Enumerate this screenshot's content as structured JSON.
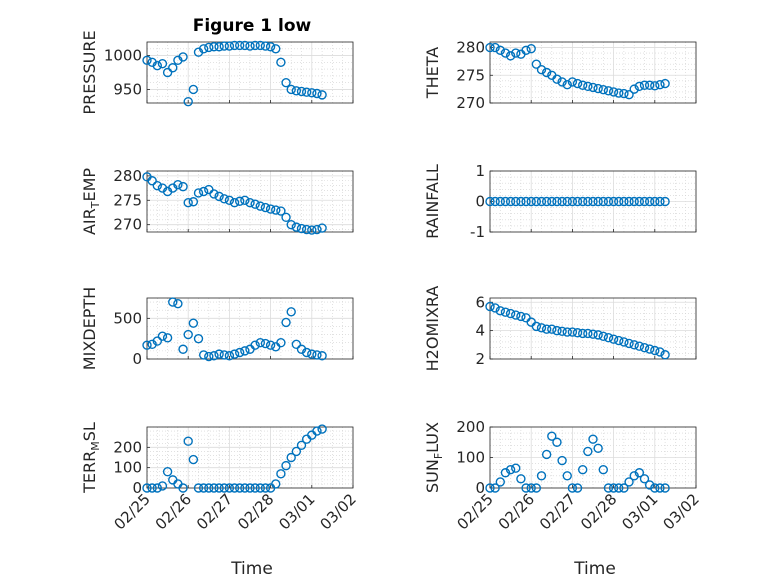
{
  "figure": {
    "title": "Figure 1 low",
    "xlabel": "Time",
    "date_ticks": [
      "02/25",
      "02/26",
      "02/27",
      "02/28",
      "03/01",
      "03/02"
    ],
    "marker_color": "#0072BD"
  },
  "chart_data": [
    {
      "type": "scatter",
      "ylabel": "PRESSURE",
      "ylabel_parts": {
        "main": "PRESSURE"
      },
      "xlim": [
        "02/25",
        "03/02"
      ],
      "ylim": [
        930,
        1020
      ],
      "yticks": [
        950,
        1000
      ],
      "grid": true,
      "x": [
        "02/25 00:00",
        "02/25 03:00",
        "02/25 06:00",
        "02/25 09:00",
        "02/25 12:00",
        "02/25 15:00",
        "02/25 18:00",
        "02/25 21:00",
        "02/26 00:00",
        "02/26 03:00",
        "02/26 06:00",
        "02/26 09:00",
        "02/26 12:00",
        "02/26 15:00",
        "02/26 18:00",
        "02/26 21:00",
        "02/27 00:00",
        "02/27 03:00",
        "02/27 06:00",
        "02/27 09:00",
        "02/27 12:00",
        "02/27 15:00",
        "02/27 18:00",
        "02/27 21:00",
        "02/28 00:00",
        "02/28 03:00",
        "02/28 06:00",
        "02/28 09:00",
        "02/28 12:00",
        "02/28 15:00",
        "02/28 18:00",
        "02/28 21:00",
        "03/01 00:00",
        "03/01 03:00",
        "03/01 06:00"
      ],
      "y": [
        993,
        990,
        985,
        988,
        975,
        982,
        993,
        998,
        932,
        950,
        1005,
        1010,
        1012,
        1013,
        1013,
        1014,
        1014,
        1015,
        1015,
        1015,
        1014,
        1015,
        1015,
        1014,
        1013,
        1010,
        990,
        960,
        950,
        948,
        947,
        946,
        945,
        944,
        942
      ]
    },
    {
      "type": "scatter",
      "ylabel": "THETA",
      "ylabel_parts": {
        "main": "THETA"
      },
      "xlim": [
        "02/25",
        "03/02"
      ],
      "ylim": [
        270,
        281
      ],
      "yticks": [
        270,
        275,
        280
      ],
      "grid": true,
      "x": [
        "02/25 00:00",
        "02/25 03:00",
        "02/25 06:00",
        "02/25 09:00",
        "02/25 12:00",
        "02/25 15:00",
        "02/25 18:00",
        "02/25 21:00",
        "02/26 00:00",
        "02/26 03:00",
        "02/26 06:00",
        "02/26 09:00",
        "02/26 12:00",
        "02/26 15:00",
        "02/26 18:00",
        "02/26 21:00",
        "02/27 00:00",
        "02/27 03:00",
        "02/27 06:00",
        "02/27 09:00",
        "02/27 12:00",
        "02/27 15:00",
        "02/27 18:00",
        "02/27 21:00",
        "02/28 00:00",
        "02/28 03:00",
        "02/28 06:00",
        "02/28 09:00",
        "02/28 12:00",
        "02/28 15:00",
        "02/28 18:00",
        "02/28 21:00",
        "03/01 00:00",
        "03/01 03:00",
        "03/01 06:00"
      ],
      "y": [
        280,
        280,
        279.5,
        279,
        278.5,
        279,
        278.8,
        279.5,
        279.8,
        277,
        276,
        275.5,
        275,
        274.3,
        273.8,
        273.3,
        273.8,
        273.5,
        273.2,
        273,
        272.8,
        272.6,
        272.4,
        272.2,
        272,
        271.8,
        271.7,
        271.5,
        272.5,
        273,
        273.2,
        273.2,
        273.1,
        273.3,
        273.5
      ]
    },
    {
      "type": "scatter",
      "ylabel": "AIR_TEMP",
      "ylabel_parts": {
        "main": "AIR",
        "sub": "T",
        "rest": "EMP"
      },
      "xlim": [
        "02/25",
        "03/02"
      ],
      "ylim": [
        268.5,
        281
      ],
      "yticks": [
        270,
        275,
        280
      ],
      "grid": true,
      "x": [
        "02/25 00:00",
        "02/25 03:00",
        "02/25 06:00",
        "02/25 09:00",
        "02/25 12:00",
        "02/25 15:00",
        "02/25 18:00",
        "02/25 21:00",
        "02/26 00:00",
        "02/26 03:00",
        "02/26 06:00",
        "02/26 09:00",
        "02/26 12:00",
        "02/26 15:00",
        "02/26 18:00",
        "02/26 21:00",
        "02/27 00:00",
        "02/27 03:00",
        "02/27 06:00",
        "02/27 09:00",
        "02/27 12:00",
        "02/27 15:00",
        "02/27 18:00",
        "02/27 21:00",
        "02/28 00:00",
        "02/28 03:00",
        "02/28 06:00",
        "02/28 09:00",
        "02/28 12:00",
        "02/28 15:00",
        "02/28 18:00",
        "02/28 21:00",
        "03/01 00:00",
        "03/01 03:00",
        "03/01 06:00"
      ],
      "y": [
        279.8,
        279,
        278,
        277.5,
        276.8,
        277.5,
        278.2,
        277.8,
        274.5,
        274.7,
        276.5,
        276.8,
        277.2,
        276.3,
        275.8,
        275.3,
        275,
        274.5,
        274.8,
        275,
        274.5,
        274.2,
        273.8,
        273.5,
        273.2,
        273,
        272.8,
        271.5,
        270,
        269.5,
        269.2,
        269,
        268.9,
        269,
        269.3
      ]
    },
    {
      "type": "scatter",
      "ylabel": "RAINFALL",
      "ylabel_parts": {
        "main": "RAINFALL"
      },
      "xlim": [
        "02/25",
        "03/02"
      ],
      "ylim": [
        -1,
        1
      ],
      "yticks": [
        -1,
        0,
        1
      ],
      "grid": true,
      "x": [
        "02/25 00:00",
        "02/25 03:00",
        "02/25 06:00",
        "02/25 09:00",
        "02/25 12:00",
        "02/25 15:00",
        "02/25 18:00",
        "02/25 21:00",
        "02/26 00:00",
        "02/26 03:00",
        "02/26 06:00",
        "02/26 09:00",
        "02/26 12:00",
        "02/26 15:00",
        "02/26 18:00",
        "02/26 21:00",
        "02/27 00:00",
        "02/27 03:00",
        "02/27 06:00",
        "02/27 09:00",
        "02/27 12:00",
        "02/27 15:00",
        "02/27 18:00",
        "02/27 21:00",
        "02/28 00:00",
        "02/28 03:00",
        "02/28 06:00",
        "02/28 09:00",
        "02/28 12:00",
        "02/28 15:00",
        "02/28 18:00",
        "02/28 21:00",
        "03/01 00:00",
        "03/01 03:00",
        "03/01 06:00"
      ],
      "y": [
        0,
        0,
        0,
        0,
        0,
        0,
        0,
        0,
        0,
        0,
        0,
        0,
        0,
        0,
        0,
        0,
        0,
        0,
        0,
        0,
        0,
        0,
        0,
        0,
        0,
        0,
        0,
        0,
        0,
        0,
        0,
        0,
        0,
        0,
        0
      ]
    },
    {
      "type": "scatter",
      "ylabel": "MIXDEPTH",
      "ylabel_parts": {
        "main": "MIXDEPTH"
      },
      "xlim": [
        "02/25",
        "03/02"
      ],
      "ylim": [
        0,
        750
      ],
      "yticks": [
        0,
        500
      ],
      "grid": true,
      "x": [
        "02/25 00:00",
        "02/25 03:00",
        "02/25 06:00",
        "02/25 09:00",
        "02/25 12:00",
        "02/25 15:00",
        "02/25 18:00",
        "02/25 21:00",
        "02/26 00:00",
        "02/26 03:00",
        "02/26 06:00",
        "02/26 09:00",
        "02/26 12:00",
        "02/26 15:00",
        "02/26 18:00",
        "02/26 21:00",
        "02/27 00:00",
        "02/27 03:00",
        "02/27 06:00",
        "02/27 09:00",
        "02/27 12:00",
        "02/27 15:00",
        "02/27 18:00",
        "02/27 21:00",
        "02/28 00:00",
        "02/28 03:00",
        "02/28 06:00",
        "02/28 09:00",
        "02/28 12:00",
        "02/28 15:00",
        "02/28 18:00",
        "02/28 21:00",
        "03/01 00:00",
        "03/01 03:00",
        "03/01 06:00"
      ],
      "y": [
        170,
        180,
        220,
        280,
        260,
        700,
        680,
        120,
        300,
        440,
        250,
        50,
        30,
        40,
        60,
        50,
        40,
        60,
        80,
        100,
        120,
        170,
        200,
        190,
        170,
        150,
        200,
        450,
        580,
        180,
        120,
        80,
        60,
        50,
        40
      ]
    },
    {
      "type": "scatter",
      "ylabel": "H2OMIXRA",
      "ylabel_parts": {
        "main": "H2OMIXRA"
      },
      "xlim": [
        "02/25",
        "03/02"
      ],
      "ylim": [
        2,
        6.3
      ],
      "yticks": [
        2,
        4,
        6
      ],
      "grid": true,
      "x": [
        "02/25 00:00",
        "02/25 03:00",
        "02/25 06:00",
        "02/25 09:00",
        "02/25 12:00",
        "02/25 15:00",
        "02/25 18:00",
        "02/25 21:00",
        "02/26 00:00",
        "02/26 03:00",
        "02/26 06:00",
        "02/26 09:00",
        "02/26 12:00",
        "02/26 15:00",
        "02/26 18:00",
        "02/26 21:00",
        "02/27 00:00",
        "02/27 03:00",
        "02/27 06:00",
        "02/27 09:00",
        "02/27 12:00",
        "02/27 15:00",
        "02/27 18:00",
        "02/27 21:00",
        "02/28 00:00",
        "02/28 03:00",
        "02/28 06:00",
        "02/28 09:00",
        "02/28 12:00",
        "02/28 15:00",
        "02/28 18:00",
        "02/28 21:00",
        "03/01 00:00",
        "03/01 03:00",
        "03/01 06:00"
      ],
      "y": [
        5.7,
        5.6,
        5.4,
        5.3,
        5.2,
        5.1,
        5.0,
        4.9,
        4.6,
        4.3,
        4.2,
        4.1,
        4.1,
        4.0,
        3.95,
        3.9,
        3.9,
        3.85,
        3.8,
        3.8,
        3.75,
        3.7,
        3.6,
        3.5,
        3.4,
        3.3,
        3.2,
        3.1,
        3.0,
        2.9,
        2.8,
        2.7,
        2.6,
        2.5,
        2.3
      ]
    },
    {
      "type": "scatter",
      "ylabel": "TERR_MSL",
      "ylabel_parts": {
        "main": "TERR",
        "sub": "M",
        "rest": "SL"
      },
      "xlim": [
        "02/25",
        "03/02"
      ],
      "ylim": [
        0,
        300
      ],
      "yticks": [
        0,
        100,
        200
      ],
      "grid": true,
      "x": [
        "02/25 00:00",
        "02/25 03:00",
        "02/25 06:00",
        "02/25 09:00",
        "02/25 12:00",
        "02/25 15:00",
        "02/25 18:00",
        "02/25 21:00",
        "02/26 00:00",
        "02/26 03:00",
        "02/26 06:00",
        "02/26 09:00",
        "02/26 12:00",
        "02/26 15:00",
        "02/26 18:00",
        "02/26 21:00",
        "02/27 00:00",
        "02/27 03:00",
        "02/27 06:00",
        "02/27 09:00",
        "02/27 12:00",
        "02/27 15:00",
        "02/27 18:00",
        "02/27 21:00",
        "02/28 00:00",
        "02/28 03:00",
        "02/28 06:00",
        "02/28 09:00",
        "02/28 12:00",
        "02/28 15:00",
        "02/28 18:00",
        "02/28 21:00",
        "03/01 00:00",
        "03/01 03:00",
        "03/01 06:00"
      ],
      "y": [
        0,
        0,
        0,
        10,
        80,
        40,
        20,
        0,
        230,
        140,
        0,
        0,
        0,
        0,
        0,
        0,
        0,
        0,
        0,
        0,
        0,
        0,
        0,
        0,
        0,
        20,
        70,
        110,
        150,
        180,
        210,
        240,
        260,
        280,
        290
      ]
    },
    {
      "type": "scatter",
      "ylabel": "SUN_FLUX",
      "ylabel_parts": {
        "main": "SUN",
        "sub": "F",
        "rest": "LUX"
      },
      "xlim": [
        "02/25",
        "03/02"
      ],
      "ylim": [
        0,
        200
      ],
      "yticks": [
        0,
        100,
        200
      ],
      "grid": true,
      "x": [
        "02/25 00:00",
        "02/25 03:00",
        "02/25 06:00",
        "02/25 09:00",
        "02/25 12:00",
        "02/25 15:00",
        "02/25 18:00",
        "02/25 21:00",
        "02/26 00:00",
        "02/26 03:00",
        "02/26 06:00",
        "02/26 09:00",
        "02/26 12:00",
        "02/26 15:00",
        "02/26 18:00",
        "02/26 21:00",
        "02/27 00:00",
        "02/27 03:00",
        "02/27 06:00",
        "02/27 09:00",
        "02/27 12:00",
        "02/27 15:00",
        "02/27 18:00",
        "02/27 21:00",
        "02/28 00:00",
        "02/28 03:00",
        "02/28 06:00",
        "02/28 09:00",
        "02/28 12:00",
        "02/28 15:00",
        "02/28 18:00",
        "02/28 21:00",
        "03/01 00:00",
        "03/01 03:00",
        "03/01 06:00"
      ],
      "y": [
        0,
        0,
        20,
        50,
        60,
        65,
        30,
        0,
        0,
        0,
        40,
        110,
        170,
        150,
        90,
        40,
        0,
        0,
        60,
        120,
        160,
        130,
        60,
        0,
        0,
        0,
        0,
        20,
        40,
        50,
        30,
        10,
        0,
        0,
        0
      ]
    }
  ]
}
